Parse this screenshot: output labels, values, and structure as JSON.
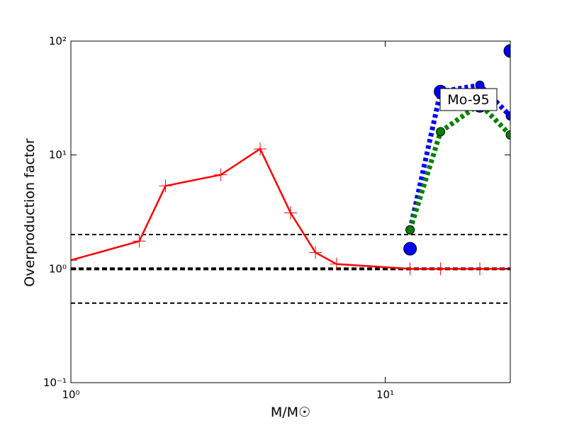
{
  "chart_data": {
    "type": "line",
    "xlabel": "M/M☉",
    "ylabel": "Overproduction factor",
    "xscale": "log",
    "yscale": "log",
    "xlim": [
      1,
      25
    ],
    "ylim": [
      0.1,
      100
    ],
    "xticks": [
      {
        "value": 1,
        "label": "10⁰"
      },
      {
        "value": 10,
        "label": "10¹"
      }
    ],
    "yticks": [
      {
        "value": 0.1,
        "label": "10⁻¹"
      },
      {
        "value": 1,
        "label": "10⁰"
      },
      {
        "value": 10,
        "label": "10¹"
      },
      {
        "value": 100,
        "label": "10²"
      }
    ],
    "hlines": [
      0.5,
      1,
      2
    ],
    "hline_color": "#000000",
    "annotation": "Mo-95",
    "series": [
      {
        "color": "#ff0000",
        "line": "solid",
        "marker": "+",
        "x": [
          1,
          1.65,
          2,
          3,
          4,
          5,
          6,
          7,
          12,
          15,
          20,
          25
        ],
        "values": [
          1.19,
          1.75,
          5.35,
          6.7,
          11.3,
          3.1,
          1.39,
          1.1,
          1,
          1,
          1,
          1
        ]
      },
      {
        "color": "#0000ff",
        "line": "dotted",
        "marker": "o",
        "x": [
          12,
          15,
          20,
          25
        ],
        "values": [
          2.2,
          36,
          41,
          22
        ]
      },
      {
        "color": "#0000ff",
        "line": "none",
        "marker": "o",
        "x": [
          12,
          15,
          20,
          25
        ],
        "values": [
          1.5,
          36,
          27,
          82
        ]
      },
      {
        "color": "#008000",
        "line": "dotted",
        "marker": "o",
        "x": [
          12,
          15,
          20,
          25
        ],
        "values": [
          2.2,
          16,
          28,
          15
        ]
      }
    ]
  }
}
